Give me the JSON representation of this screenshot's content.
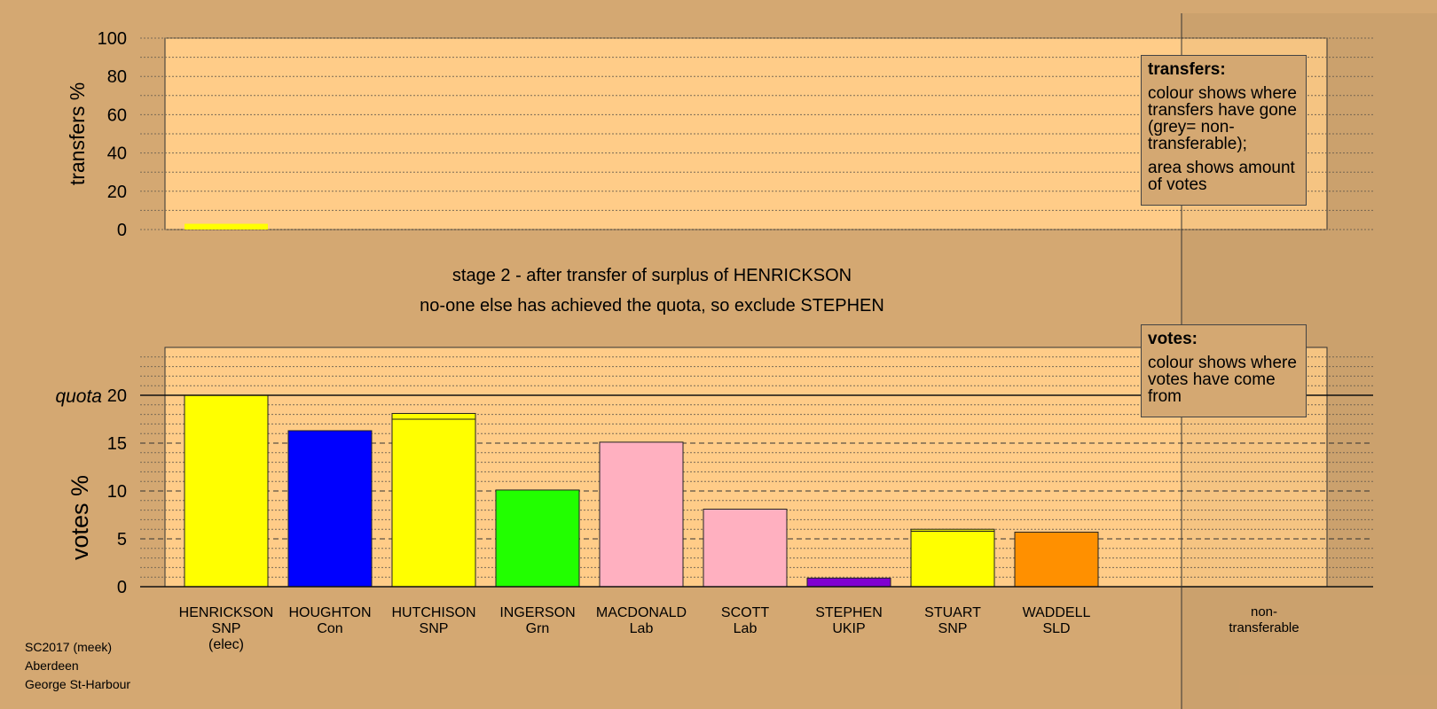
{
  "stage_title": "stage 2 - after transfer of surplus of HENRICKSON",
  "stage_note": "no-one else has achieved the quota, so exclude STEPHEN",
  "legend_transfers": {
    "heading": "transfers:",
    "line1": "colour shows where transfers have gone (grey= non-transferable);",
    "line2": "area shows amount of votes"
  },
  "legend_votes": {
    "heading": "votes:",
    "line1": "colour shows where votes have come from"
  },
  "footer": {
    "line1": "SC2017 (meek)",
    "line2": "Aberdeen",
    "line3": "George St-Harbour"
  },
  "colors": {
    "background": "#d4a872",
    "plot": "#ffcc88",
    "SNP": "#ffff00",
    "Con": "#0000ff",
    "Grn": "#22ff00",
    "Lab": "#ffb0c0",
    "UKIP": "#8000d0",
    "SLD": "#ff9000"
  },
  "chart_data": [
    {
      "type": "bar",
      "ylabel": "transfers %",
      "ylim": [
        0,
        100
      ],
      "yticks": [
        0,
        20,
        40,
        60,
        80,
        100
      ],
      "categories": [
        "HENRICKSON",
        "HOUGHTON",
        "HUTCHISON",
        "INGERSON",
        "MACDONALD",
        "SCOTT",
        "STEPHEN",
        "STUART",
        "WADDELL",
        "non-transferable"
      ],
      "values": [
        3,
        0,
        0,
        0,
        0,
        0,
        0,
        0,
        0,
        0
      ],
      "bar_colors": [
        "#ffff00",
        "",
        "",
        "",
        "",
        "",
        "",
        "",
        "",
        ""
      ],
      "grid": true
    },
    {
      "type": "bar",
      "ylabel": "votes %",
      "quota_label": "quota",
      "quota": 20,
      "ylim": [
        0,
        25
      ],
      "yticks": [
        0,
        5,
        10,
        15,
        20
      ],
      "categories": [
        {
          "name": "HENRICKSON",
          "party": "SNP",
          "note": "(elec)"
        },
        {
          "name": "HOUGHTON",
          "party": "Con",
          "note": ""
        },
        {
          "name": "HUTCHISON",
          "party": "SNP",
          "note": ""
        },
        {
          "name": "INGERSON",
          "party": "Grn",
          "note": ""
        },
        {
          "name": "MACDONALD",
          "party": "Lab",
          "note": ""
        },
        {
          "name": "SCOTT",
          "party": "Lab",
          "note": ""
        },
        {
          "name": "STEPHEN",
          "party": "UKIP",
          "note": ""
        },
        {
          "name": "STUART",
          "party": "SNP",
          "note": ""
        },
        {
          "name": "WADDELL",
          "party": "SLD",
          "note": ""
        }
      ],
      "nontransferable_label": "non-\ntransferable",
      "stacks": [
        [
          {
            "value": 20,
            "color": "#ffff00"
          }
        ],
        [
          {
            "value": 16.3,
            "color": "#0000ff"
          }
        ],
        [
          {
            "value": 17.5,
            "color": "#ffff00"
          },
          {
            "value": 0.6,
            "color": "#ffff00"
          }
        ],
        [
          {
            "value": 10.1,
            "color": "#22ff00"
          }
        ],
        [
          {
            "value": 15.1,
            "color": "#ffb0c0"
          }
        ],
        [
          {
            "value": 8.1,
            "color": "#ffb0c0"
          }
        ],
        [
          {
            "value": 0.9,
            "color": "#8000d0"
          }
        ],
        [
          {
            "value": 5.8,
            "color": "#ffff00"
          },
          {
            "value": 0.2,
            "color": "#ffff00"
          }
        ],
        [
          {
            "value": 5.7,
            "color": "#ff9000"
          }
        ]
      ],
      "nontransferable_value": 0,
      "grid": true
    }
  ]
}
